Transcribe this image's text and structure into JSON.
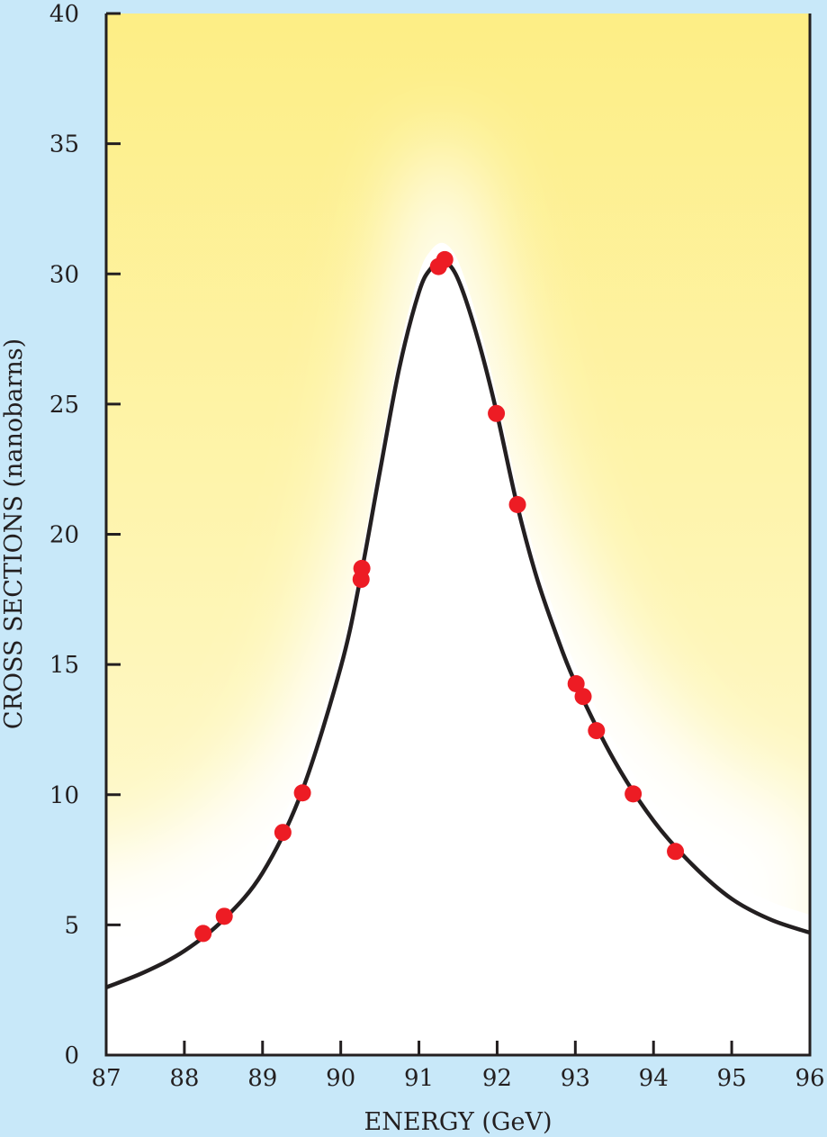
{
  "chart_data": {
    "type": "scatter",
    "title": "",
    "xlabel": "ENERGY (GeV)",
    "ylabel": "CROSS SECTIONS (nanobarns)",
    "xlim": [
      87,
      96
    ],
    "ylim": [
      0,
      40
    ],
    "x_ticks": [
      "87",
      "88",
      "89",
      "90",
      "91",
      "92",
      "93",
      "94",
      "95",
      "96"
    ],
    "y_ticks": [
      "0",
      "5",
      "10",
      "15",
      "20",
      "25",
      "30",
      "35",
      "40"
    ],
    "grid": false,
    "points": {
      "name": "measurements",
      "color": "#ed1c24",
      "x": [
        88.24,
        88.51,
        89.26,
        89.51,
        90.26,
        90.27,
        91.25,
        91.33,
        91.99,
        92.26,
        93.01,
        93.1,
        93.27,
        93.74,
        94.28
      ],
      "y": [
        4.67,
        5.33,
        8.55,
        10.07,
        18.27,
        18.69,
        30.28,
        30.55,
        24.64,
        21.14,
        14.26,
        13.77,
        12.46,
        10.03,
        7.82
      ]
    },
    "fit_curve": {
      "name": "fit",
      "color": "#231f20",
      "x": [
        87,
        87.5,
        88,
        88.5,
        89,
        89.5,
        90,
        90.25,
        90.5,
        90.75,
        91,
        91.15,
        91.3,
        91.45,
        91.6,
        91.8,
        92,
        92.25,
        92.5,
        92.75,
        93,
        93.5,
        94,
        94.5,
        95,
        95.5,
        96
      ],
      "y": [
        2.6,
        3.2,
        4.0,
        5.2,
        7.0,
        10.1,
        14.9,
        18.3,
        22.4,
        26.4,
        29.3,
        30.2,
        30.5,
        30.1,
        29.0,
        27.0,
        24.6,
        21.2,
        18.4,
        16.2,
        14.3,
        11.3,
        9.0,
        7.3,
        6.0,
        5.2,
        4.7
      ]
    },
    "colors": {
      "background": "#c8e8f9",
      "glow_yellow": "#fdf08a"
    }
  }
}
